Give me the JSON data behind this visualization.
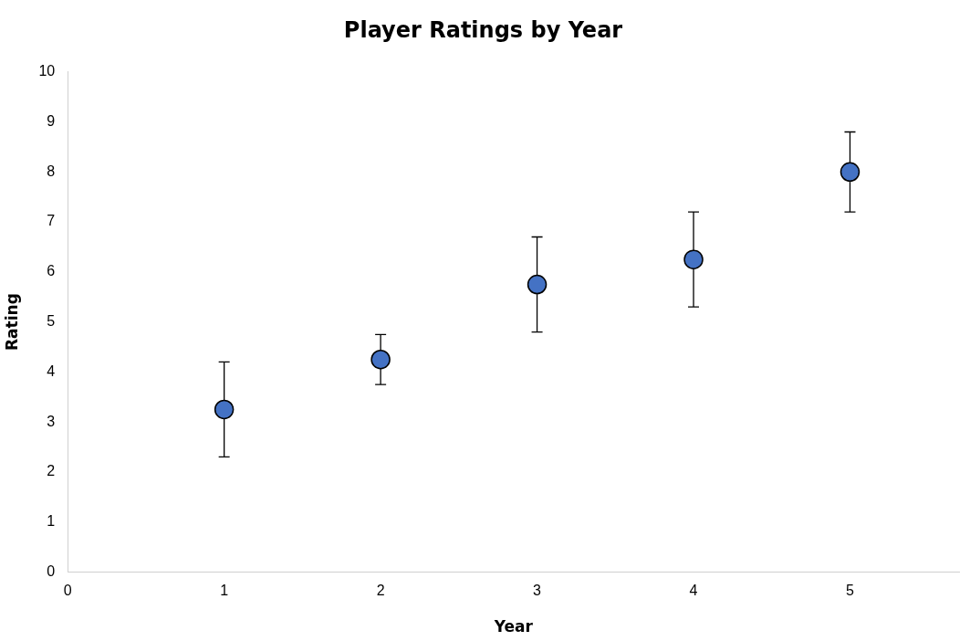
{
  "chart_data": {
    "type": "scatter",
    "title": "Player Ratings by Year",
    "xlabel": "Year",
    "ylabel": "Rating",
    "x": [
      1,
      2,
      3,
      4,
      5
    ],
    "values": [
      3.25,
      4.25,
      5.75,
      6.25,
      8
    ],
    "errors": [
      0.95,
      0.5,
      0.95,
      0.95,
      0.8
    ],
    "color": "#4472c4",
    "marker": "circle",
    "xlim": [
      0,
      5.7
    ],
    "xticks": [
      0,
      1,
      2,
      3,
      4,
      5
    ],
    "ylim": [
      0,
      10
    ],
    "yticks": [
      0,
      1,
      2,
      3,
      4,
      5,
      6,
      7,
      8,
      9,
      10
    ],
    "grid": false,
    "legend": false
  }
}
